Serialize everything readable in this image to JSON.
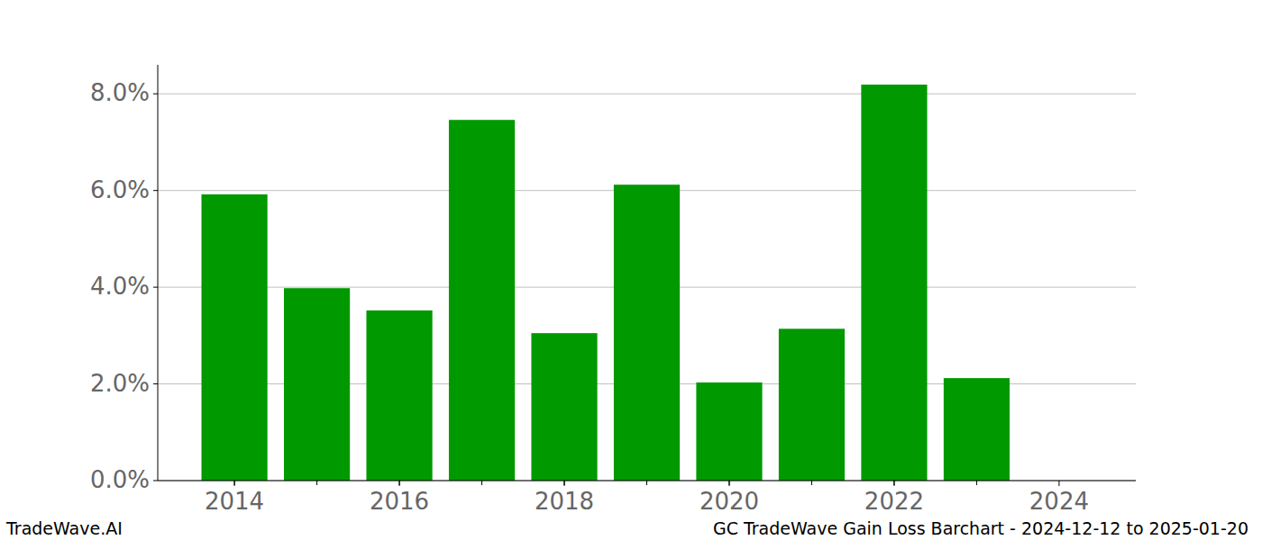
{
  "chart_data": {
    "type": "bar",
    "title": "GC TradeWave Gain Loss Barchart - 2024-12-12 to 2025-01-20",
    "annotations": [
      "TradeWave.AI"
    ],
    "x": [
      2014,
      2015,
      2016,
      2017,
      2018,
      2019,
      2020,
      2021,
      2022,
      2023
    ],
    "values": [
      5.92,
      3.98,
      3.52,
      7.46,
      3.05,
      6.12,
      2.03,
      3.14,
      8.19,
      2.12
    ],
    "color": "#009900",
    "xlim": [
      2013.07,
      2024.93
    ],
    "xticks": [
      2014,
      2016,
      2018,
      2020,
      2022,
      2024
    ],
    "ylim": [
      0,
      8.6
    ],
    "yticks": [
      {
        "value": 0,
        "label": "0.0%"
      },
      {
        "value": 2,
        "label": "2.0%"
      },
      {
        "value": 4,
        "label": "4.0%"
      },
      {
        "value": 6,
        "label": "6.0%"
      },
      {
        "value": 8,
        "label": "8.0%"
      }
    ],
    "grid": true
  }
}
